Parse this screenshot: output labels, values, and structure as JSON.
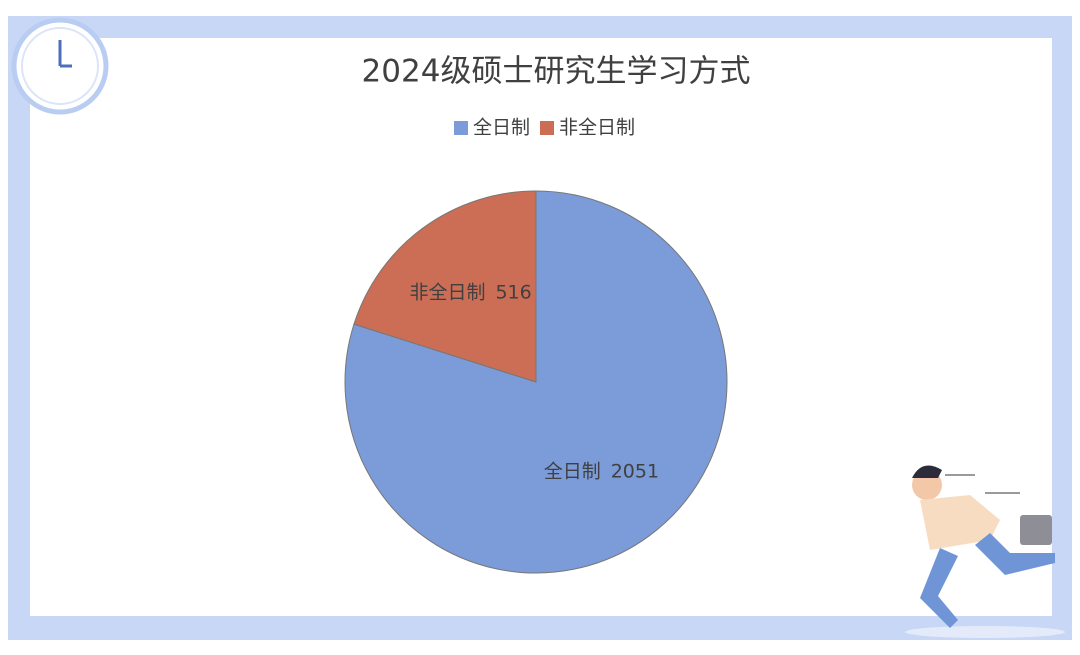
{
  "chart_data": {
    "type": "pie",
    "title": "2024级硕士研究生学习方式",
    "categories": [
      "全日制",
      "非全日制"
    ],
    "values": [
      2051,
      516
    ],
    "colors": [
      "#7b9bd9",
      "#cc6d56"
    ],
    "legend": "top"
  }
}
